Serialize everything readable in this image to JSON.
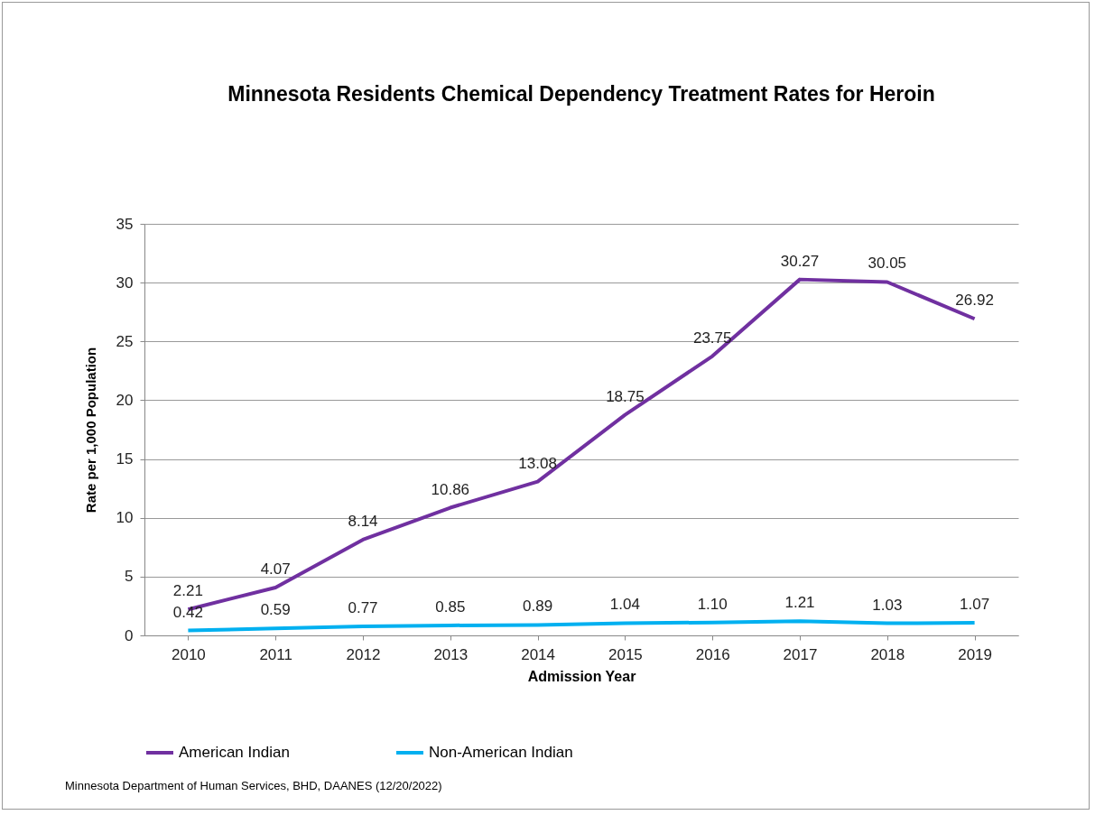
{
  "chart_data": {
    "type": "line",
    "title": "Minnesota Residents Chemical Dependency  Treatment Rates for Heroin",
    "xlabel": "Admission Year",
    "ylabel": "Rate per 1,000 Population",
    "categories": [
      "2010",
      "2011",
      "2012",
      "2013",
      "2014",
      "2015",
      "2016",
      "2017",
      "2018",
      "2019"
    ],
    "series": [
      {
        "name": "American Indian",
        "color": "#7030a0",
        "values": [
          2.21,
          4.07,
          8.14,
          10.86,
          13.08,
          18.75,
          23.75,
          30.27,
          30.05,
          26.92
        ],
        "value_labels": [
          "2.21",
          "4.07",
          "8.14",
          "10.86",
          "13.08",
          "18.75",
          "23.75",
          "30.27",
          "30.05",
          "26.92"
        ]
      },
      {
        "name": "Non-American Indian",
        "color": "#00b0f0",
        "values": [
          0.42,
          0.59,
          0.77,
          0.85,
          0.89,
          1.04,
          1.1,
          1.21,
          1.03,
          1.07
        ],
        "value_labels": [
          "0.42",
          "0.59",
          "0.77",
          "0.85",
          "0.89",
          "1.04",
          "1.10",
          "1.21",
          "1.03",
          "1.07"
        ]
      }
    ],
    "ylim": [
      0,
      35
    ],
    "yticks": [
      0,
      5,
      10,
      15,
      20,
      25,
      30,
      35
    ],
    "grid": "y",
    "legend": "bottom",
    "annotations": [
      "Minnesota Department of Human Services, BHD, DAANES (12/20/2022)"
    ]
  }
}
